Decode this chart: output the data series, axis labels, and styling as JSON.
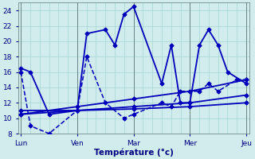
{
  "background_color": "#d0ecec",
  "grid_color": "#a8d4d4",
  "line_color": "#0000bb",
  "ylim": [
    8,
    25
  ],
  "yticks": [
    8,
    10,
    12,
    14,
    16,
    18,
    20,
    22,
    24
  ],
  "xlabel": "Température (°c)",
  "day_labels": [
    "Lun",
    "Ven",
    "Mar",
    "Mer",
    "Jeu"
  ],
  "day_positions": [
    0,
    1,
    2,
    3,
    4
  ],
  "xlim": [
    -0.05,
    4.05
  ],
  "lines": [
    {
      "x": [
        0,
        0.17,
        0.5,
        1.0,
        1.17,
        1.5,
        1.67,
        1.83,
        2.0,
        2.5,
        2.67,
        2.83,
        3.0,
        3.17,
        3.33,
        3.5,
        3.67,
        4.0
      ],
      "y": [
        16.5,
        16.0,
        10.5,
        11.0,
        21.0,
        21.5,
        19.5,
        23.5,
        24.5,
        14.5,
        19.5,
        12.0,
        12.0,
        19.5,
        21.5,
        19.5,
        16.0,
        14.5
      ],
      "style": "-",
      "marker": "D",
      "markersize": 2.5,
      "linewidth": 1.3
    },
    {
      "x": [
        0,
        0.17,
        0.5,
        1.0,
        1.17,
        1.5,
        1.83,
        2.0,
        2.5,
        2.67,
        2.83,
        3.17,
        3.33,
        3.5,
        3.83,
        4.0
      ],
      "y": [
        16.0,
        9.0,
        8.0,
        11.0,
        18.0,
        12.0,
        10.0,
        10.5,
        12.0,
        11.5,
        13.5,
        13.5,
        14.5,
        13.5,
        15.0,
        15.0
      ],
      "style": "--",
      "marker": "D",
      "markersize": 2.5,
      "linewidth": 1.1
    },
    {
      "x": [
        0,
        1.0,
        2.0,
        3.0,
        4.0
      ],
      "y": [
        11.0,
        11.0,
        11.2,
        11.5,
        12.0
      ],
      "style": "-",
      "marker": "D",
      "markersize": 2.5,
      "linewidth": 1.3
    },
    {
      "x": [
        0,
        1.0,
        2.0,
        3.0,
        4.0
      ],
      "y": [
        10.5,
        11.0,
        11.5,
        12.0,
        13.0
      ],
      "style": "-",
      "marker": "D",
      "markersize": 2.5,
      "linewidth": 1.3
    },
    {
      "x": [
        0,
        1.0,
        2.0,
        3.0,
        4.0
      ],
      "y": [
        10.5,
        11.5,
        12.5,
        13.5,
        15.0
      ],
      "style": "-",
      "marker": "D",
      "markersize": 2.5,
      "linewidth": 1.3
    }
  ]
}
